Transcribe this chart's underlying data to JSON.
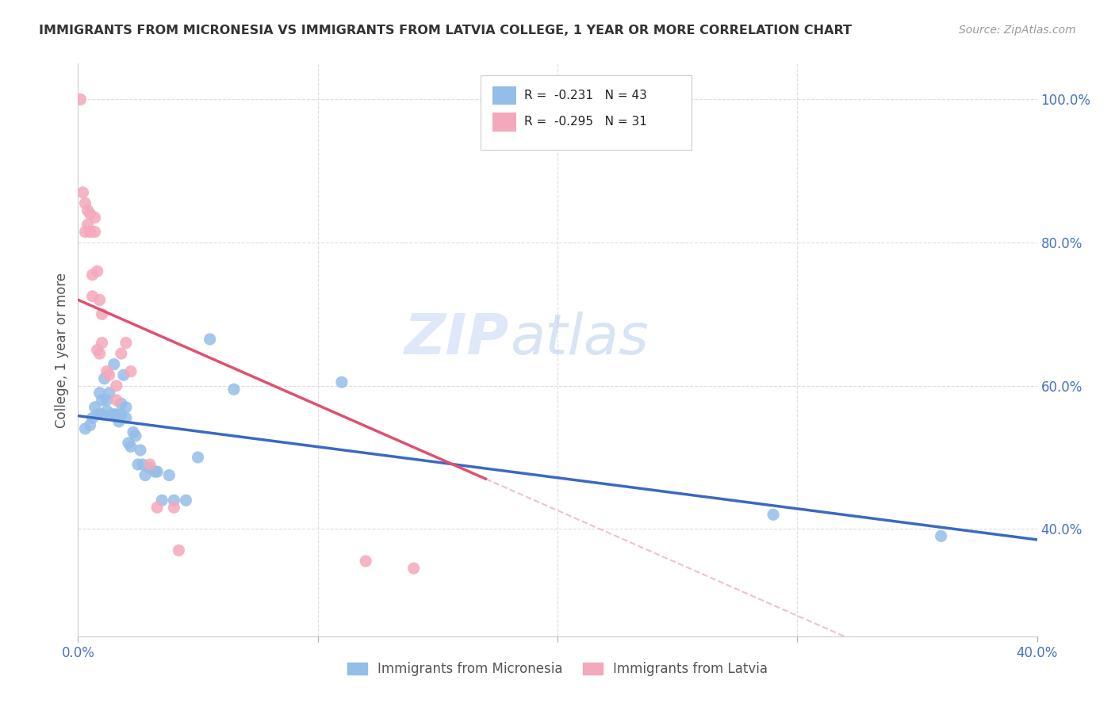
{
  "title": "IMMIGRANTS FROM MICRONESIA VS IMMIGRANTS FROM LATVIA COLLEGE, 1 YEAR OR MORE CORRELATION CHART",
  "source": "Source: ZipAtlas.com",
  "ylabel": "College, 1 year or more",
  "xlim": [
    0.0,
    0.4
  ],
  "ylim": [
    0.25,
    1.05
  ],
  "yticks_right": [
    1.0,
    0.8,
    0.6,
    0.4
  ],
  "ytick_labels_right": [
    "100.0%",
    "80.0%",
    "60.0%",
    "40.0%"
  ],
  "xtick_positions": [
    0.0,
    0.1,
    0.2,
    0.3,
    0.4
  ],
  "xtick_labels": [
    "0.0%",
    "",
    "",
    "",
    "40.0%"
  ],
  "micronesia_color": "#94bde8",
  "latvia_color": "#f4a8bb",
  "micronesia_line_color": "#3a6abf",
  "latvia_line_color": "#e05070",
  "latvia_line_dash_color": "#f0c0cc",
  "r_micronesia": -0.231,
  "n_micronesia": 43,
  "r_latvia": -0.295,
  "n_latvia": 31,
  "legend_label_micronesia": "Immigrants from Micronesia",
  "legend_label_latvia": "Immigrants from Latvia",
  "micronesia_x": [
    0.003,
    0.005,
    0.006,
    0.007,
    0.008,
    0.009,
    0.01,
    0.01,
    0.011,
    0.012,
    0.012,
    0.013,
    0.014,
    0.015,
    0.015,
    0.016,
    0.017,
    0.018,
    0.018,
    0.019,
    0.02,
    0.02,
    0.021,
    0.022,
    0.023,
    0.024,
    0.025,
    0.026,
    0.027,
    0.028,
    0.03,
    0.032,
    0.033,
    0.035,
    0.038,
    0.04,
    0.045,
    0.05,
    0.055,
    0.065,
    0.11,
    0.29,
    0.36
  ],
  "micronesia_y": [
    0.54,
    0.545,
    0.555,
    0.57,
    0.56,
    0.59,
    0.58,
    0.56,
    0.61,
    0.565,
    0.58,
    0.59,
    0.56,
    0.63,
    0.56,
    0.56,
    0.55,
    0.56,
    0.575,
    0.615,
    0.555,
    0.57,
    0.52,
    0.515,
    0.535,
    0.53,
    0.49,
    0.51,
    0.49,
    0.475,
    0.485,
    0.48,
    0.48,
    0.44,
    0.475,
    0.44,
    0.44,
    0.5,
    0.665,
    0.595,
    0.605,
    0.42,
    0.39
  ],
  "latvia_x": [
    0.001,
    0.002,
    0.003,
    0.003,
    0.004,
    0.004,
    0.005,
    0.005,
    0.006,
    0.006,
    0.007,
    0.007,
    0.008,
    0.008,
    0.009,
    0.009,
    0.01,
    0.01,
    0.012,
    0.013,
    0.016,
    0.016,
    0.018,
    0.02,
    0.022,
    0.03,
    0.033,
    0.04,
    0.042,
    0.12,
    0.14
  ],
  "latvia_y": [
    1.0,
    0.87,
    0.855,
    0.815,
    0.845,
    0.825,
    0.84,
    0.815,
    0.755,
    0.725,
    0.815,
    0.835,
    0.76,
    0.65,
    0.645,
    0.72,
    0.66,
    0.7,
    0.62,
    0.615,
    0.58,
    0.6,
    0.645,
    0.66,
    0.62,
    0.49,
    0.43,
    0.43,
    0.37,
    0.355,
    0.345
  ],
  "watermark_zip": "ZIP",
  "watermark_atlas": "atlas",
  "background_color": "#ffffff",
  "grid_color": "#dddddd"
}
